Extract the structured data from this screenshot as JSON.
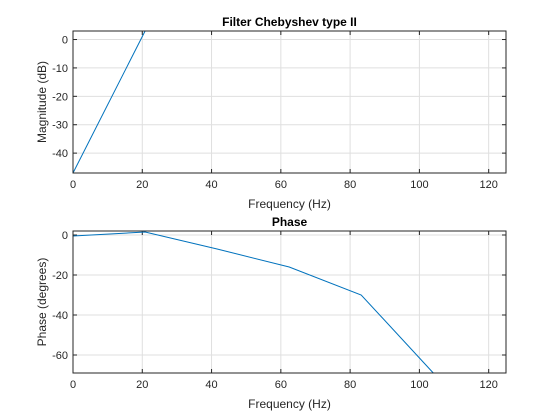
{
  "chart_data": [
    {
      "type": "line",
      "title": "Filter Chebyshev type II",
      "xlabel": "Frequency (Hz)",
      "ylabel": "Magnitude (dB)",
      "xlim": [
        0,
        125
      ],
      "ylim": [
        -47,
        3
      ],
      "xticks": [
        0,
        20,
        40,
        60,
        80,
        100,
        120
      ],
      "yticks": [
        0,
        -10,
        -20,
        -30,
        -40
      ],
      "grid": true,
      "line_color": "#0072BD",
      "series": [
        {
          "x": [
            0,
            20.8,
            41.6,
            62.4,
            83.2,
            104.0
          ],
          "y": [
            -47,
            3,
            3,
            3,
            3,
            3
          ]
        }
      ]
    },
    {
      "type": "line",
      "title": "Phase",
      "xlabel": "Frequency (Hz)",
      "ylabel": "Phase (degrees)",
      "xlim": [
        0,
        125
      ],
      "ylim": [
        -69,
        2
      ],
      "xticks": [
        0,
        20,
        40,
        60,
        80,
        100,
        120
      ],
      "yticks": [
        0,
        -20,
        -40,
        -60
      ],
      "grid": true,
      "line_color": "#0072BD",
      "series": [
        {
          "x": [
            0,
            20.8,
            41.6,
            62.4,
            83.2,
            104.0
          ],
          "y": [
            -0.5,
            1.5,
            -7.0,
            -16.0,
            -30.0,
            -69.0
          ]
        }
      ]
    }
  ]
}
